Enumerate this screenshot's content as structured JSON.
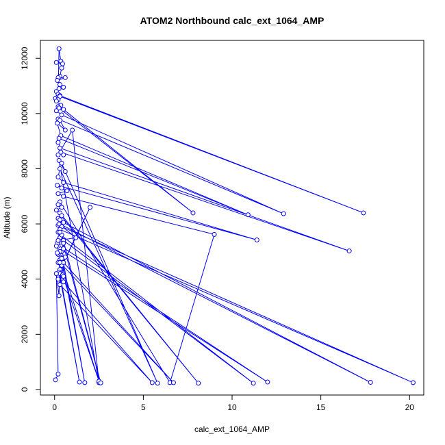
{
  "chart_data": {
    "type": "line",
    "title": "ATOM2 Northbound calc_ext_1064_AMP",
    "xlabel": "calc_ext_1064_AMP",
    "ylabel": "Altitude (m)",
    "xlim": [
      -0.8,
      20.8
    ],
    "ylim": [
      -200,
      12650
    ],
    "xticks": [
      0,
      5,
      10,
      15,
      20
    ],
    "yticks": [
      0,
      2000,
      4000,
      6000,
      8000,
      10000,
      12000
    ],
    "grid": false,
    "line_color": "#0000ff",
    "marker": "open-circle",
    "series": [
      {
        "x": [
          0.05,
          0.2,
          0.25,
          0.35,
          0.1,
          0.45,
          0.4,
          0.3,
          0.2,
          0.6,
          0.15,
          0.3,
          0.5,
          0.25,
          0.1,
          0.2,
          0.3,
          17.4,
          0.3,
          0.2,
          0.1,
          0.35,
          0.2,
          0.5,
          7.8,
          0.25,
          0.1,
          0.4,
          12.9,
          0.2,
          0.3,
          0.6,
          0.15,
          0.35,
          10.9,
          0.25,
          0.2,
          0.5,
          0.3,
          16.6,
          0.35,
          0.2,
          1.0,
          2.5,
          0.25,
          0.6,
          0.4,
          5.8,
          0.3,
          0.2,
          0.5,
          11.4,
          0.15,
          0.4,
          0.7,
          0.2,
          0.5,
          9.0,
          6.5,
          0.3,
          0.2,
          0.4,
          0.1,
          8.1,
          0.3,
          0.4,
          0.2,
          0.3,
          0.5,
          17.8,
          0.3,
          0.2,
          0.4,
          20.2,
          0.3,
          0.2,
          0.35,
          11.2,
          0.3,
          0.5,
          0.15,
          0.35,
          12.0,
          0.3,
          0.4,
          0.2,
          0.6,
          0.3,
          2.5,
          0.2,
          0.4,
          0.3,
          2.0,
          0.25,
          1.4,
          0.3,
          0.45,
          0.5,
          0.2,
          0.5,
          5.5,
          0.3,
          0.6,
          0.3,
          0.2,
          0.5,
          0.3,
          0.4,
          0.3,
          2.6,
          0.25,
          1.2,
          0.2,
          0.1,
          0.5,
          0.2,
          0.15,
          0.4,
          1.7,
          0.5,
          6.7,
          0.3,
          0.25,
          0.1,
          0.2,
          0.05
        ],
        "y": [
          10550,
          10620,
          12350,
          11900,
          11850,
          11800,
          11650,
          11350,
          11300,
          11300,
          11200,
          11050,
          10950,
          10900,
          10800,
          10700,
          10650,
          6400,
          10620,
          10500,
          10450,
          10300,
          10250,
          10150,
          6400,
          10200,
          10100,
          9950,
          6370,
          9800,
          9750,
          9400,
          9650,
          9200,
          6330,
          9100,
          8950,
          8500,
          8750,
          5020,
          8600,
          8500,
          9400,
          250,
          8300,
          7900,
          8200,
          230,
          8000,
          7700,
          7500,
          5420,
          7400,
          7300,
          7200,
          7100,
          7000,
          5620,
          250,
          6800,
          6700,
          6600,
          6500,
          230,
          6400,
          6300,
          6200,
          6150,
          6050,
          260,
          6000,
          5950,
          5900,
          250,
          5800,
          5700,
          5600,
          230,
          5500,
          5400,
          5300,
          5200,
          270,
          5100,
          5000,
          4900,
          4800,
          4700,
          300,
          4600,
          4500,
          4350,
          6600,
          4250,
          270,
          4200,
          4150,
          4100,
          4000,
          3900,
          250,
          3800,
          4800,
          5000,
          5200,
          5300,
          5500,
          5600,
          5700,
          240,
          6000,
          5500,
          5400,
          5200,
          5100,
          4900,
          4950,
          4750,
          250,
          4600,
          250,
          4600,
          3400,
          4200,
          560,
          350
        ]
      }
    ]
  }
}
